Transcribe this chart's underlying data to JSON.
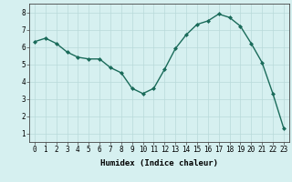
{
  "x": [
    0,
    1,
    2,
    3,
    4,
    5,
    6,
    7,
    8,
    9,
    10,
    11,
    12,
    13,
    14,
    15,
    16,
    17,
    18,
    19,
    20,
    21,
    22,
    23
  ],
  "y": [
    6.3,
    6.5,
    6.2,
    5.7,
    5.4,
    5.3,
    5.3,
    4.8,
    4.5,
    3.6,
    3.3,
    3.6,
    4.7,
    5.9,
    6.7,
    7.3,
    7.5,
    7.9,
    7.7,
    7.2,
    6.2,
    5.1,
    3.3,
    1.3
  ],
  "line_color": "#1a6b5a",
  "marker": "D",
  "marker_size": 2.0,
  "bg_color": "#d6f0f0",
  "grid_color": "#b8dada",
  "grid_color_minor": "#cce8e8",
  "xlabel": "Humidex (Indice chaleur)",
  "xlim": [
    -0.5,
    23.5
  ],
  "ylim": [
    0.5,
    8.5
  ],
  "yticks": [
    1,
    2,
    3,
    4,
    5,
    6,
    7,
    8
  ],
  "xticks": [
    0,
    1,
    2,
    3,
    4,
    5,
    6,
    7,
    8,
    9,
    10,
    11,
    12,
    13,
    14,
    15,
    16,
    17,
    18,
    19,
    20,
    21,
    22,
    23
  ],
  "tick_fontsize": 5.5,
  "label_fontsize": 6.5,
  "line_width": 1.0
}
